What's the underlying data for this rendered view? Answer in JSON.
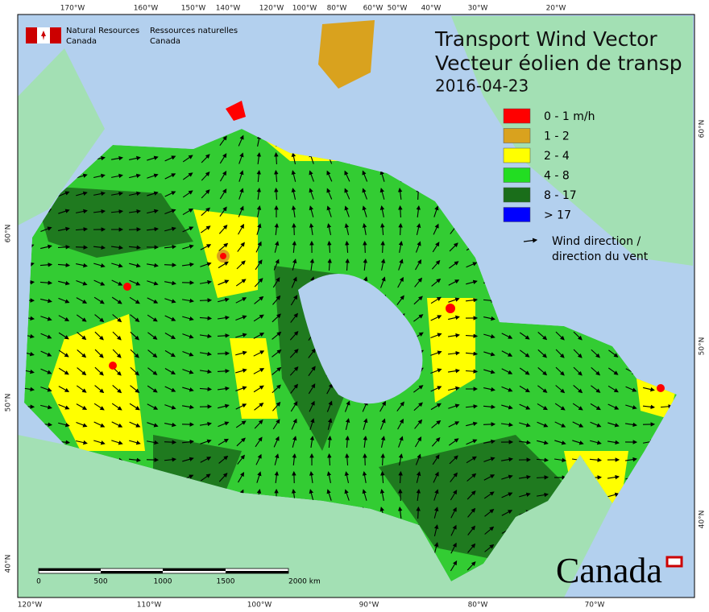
{
  "header": {
    "agency_en": [
      "Natural Resources",
      "Canada"
    ],
    "agency_fr": [
      "Ressources naturelles",
      "Canada"
    ]
  },
  "title": [
    "Transport Wind Vector",
    "Vecteur éolien de transp"
  ],
  "date": "2016-04-23",
  "legend": {
    "items": [
      {
        "label": "0 - 1 m/h",
        "color": "#ff0000"
      },
      {
        "label": "1 - 2",
        "color": "#d9a21e"
      },
      {
        "label": "2 - 4",
        "color": "#ffff00"
      },
      {
        "label": "4 - 8",
        "color": "#22dd22"
      },
      {
        "label": "8 - 17",
        "color": "#1a6e1a"
      },
      {
        "label": "> 17",
        "color": "#0000ff"
      }
    ],
    "wind": [
      "Wind direction /",
      "direction du vent"
    ]
  },
  "graticule": {
    "top": [
      "170°W",
      "160°W",
      "150°W",
      "140°W",
      "120°W",
      "100°W",
      "80°W",
      "60°W",
      "50°W",
      "40°W",
      "30°W",
      "20°W"
    ],
    "bottom": [
      "120°W",
      "110°W",
      "100°W",
      "90°W",
      "80°W",
      "70°W"
    ],
    "left": [
      "60°N",
      "50°N",
      "40°N"
    ],
    "right": [
      "60°N",
      "50°N",
      "40°N"
    ]
  },
  "scale": [
    "0",
    "500",
    "1000",
    "1500",
    "2000 km"
  ],
  "wordmark": "Canada"
}
